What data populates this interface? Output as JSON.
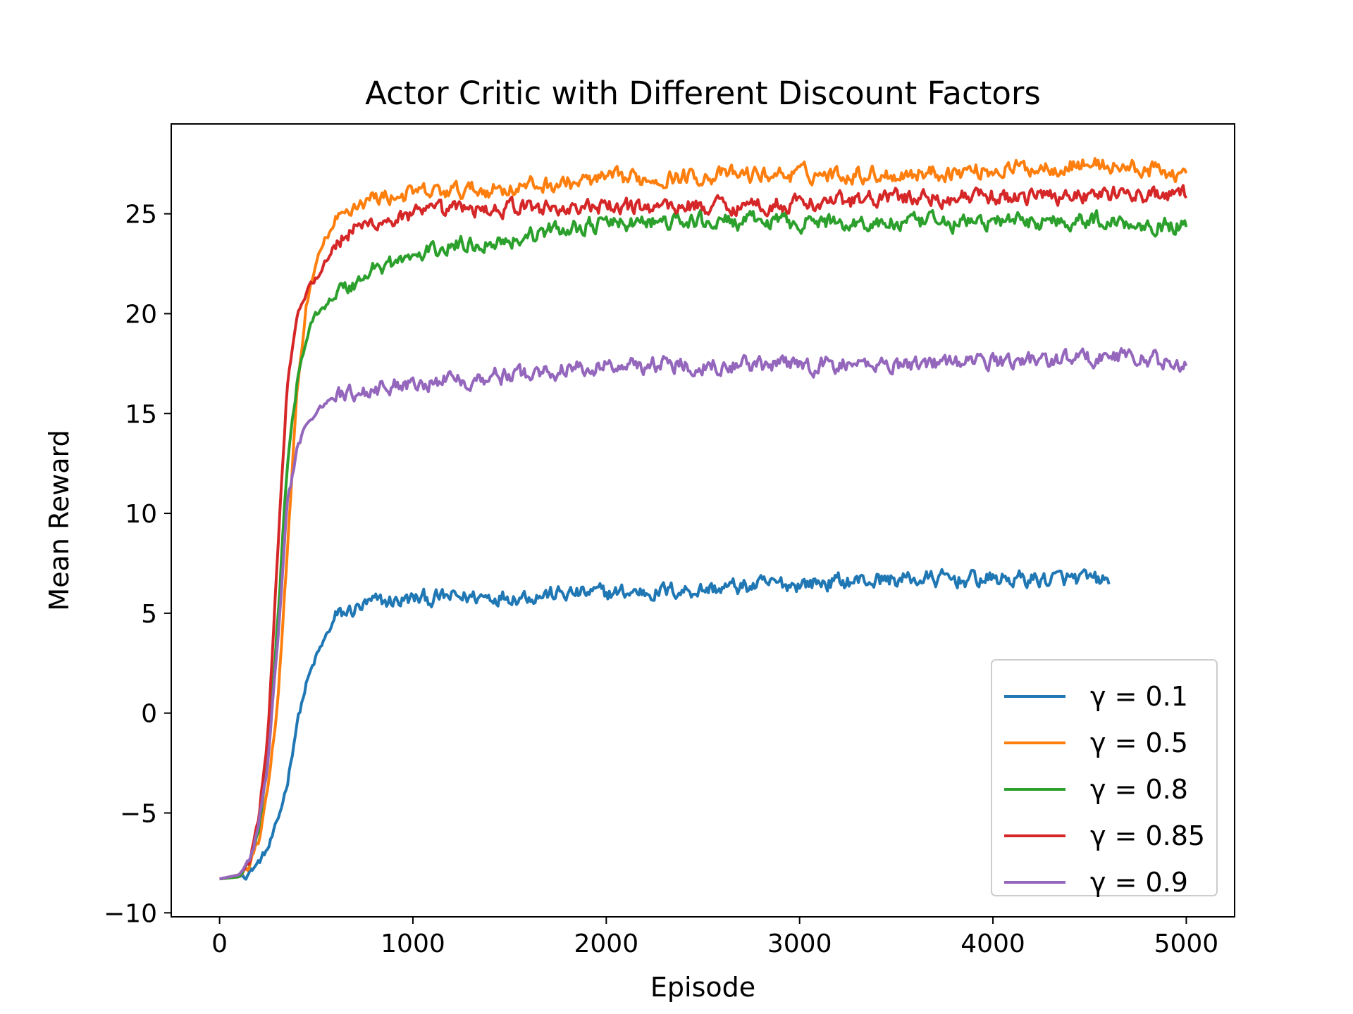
{
  "chart_data": {
    "type": "line",
    "title": "Actor Critic with Different Discount Factors",
    "xlabel": "Episode",
    "ylabel": "Mean Reward",
    "xlim": [
      -250,
      5250
    ],
    "ylim": [
      -10.2,
      29.5
    ],
    "xticks": [
      0,
      1000,
      2000,
      3000,
      4000,
      5000
    ],
    "xtick_labels": [
      "0",
      "1000",
      "2000",
      "3000",
      "4000",
      "5000"
    ],
    "yticks": [
      -10,
      -5,
      0,
      5,
      10,
      15,
      20,
      25
    ],
    "ytick_labels": [
      "−10",
      "−5",
      "0",
      "5",
      "10",
      "15",
      "20",
      "25"
    ],
    "grid": false,
    "legend_position": "lower-right",
    "series": [
      {
        "name": "γ = 0.1",
        "color": "#1f77b4",
        "x": [
          0,
          100,
          150,
          200,
          250,
          300,
          350,
          400,
          450,
          500,
          550,
          600,
          700,
          800,
          1000,
          1500,
          2000,
          2500,
          3000,
          3500,
          4000,
          4400,
          4600
        ],
        "y": [
          -8.3,
          -8.2,
          -8.0,
          -7.5,
          -6.8,
          -5.5,
          -3.5,
          -0.5,
          1.5,
          2.8,
          3.8,
          4.8,
          5.2,
          5.5,
          5.7,
          5.9,
          6.0,
          6.2,
          6.5,
          6.7,
          6.7,
          6.7,
          6.6
        ]
      },
      {
        "name": "γ = 0.5",
        "color": "#ff7f0e",
        "x": [
          0,
          100,
          150,
          200,
          250,
          300,
          350,
          400,
          450,
          500,
          550,
          600,
          700,
          800,
          1000,
          1500,
          2000,
          2500,
          3000,
          3500,
          4000,
          4500,
          5000
        ],
        "y": [
          -8.3,
          -8.2,
          -7.7,
          -6.5,
          -4.0,
          0.5,
          8.0,
          16.0,
          20.5,
          22.5,
          23.8,
          24.5,
          25.5,
          25.8,
          26.0,
          26.3,
          26.7,
          26.9,
          27.0,
          27.0,
          27.2,
          27.5,
          27.0
        ]
      },
      {
        "name": "γ = 0.8",
        "color": "#2ca02c",
        "x": [
          0,
          100,
          150,
          200,
          250,
          300,
          350,
          400,
          450,
          500,
          600,
          700,
          800,
          1000,
          1200,
          1500,
          1800,
          2000,
          2500,
          3000,
          3500,
          4000,
          4500,
          5000
        ],
        "y": [
          -8.3,
          -8.2,
          -7.6,
          -6.0,
          -2.5,
          4.5,
          12.5,
          16.5,
          18.8,
          20.0,
          21.0,
          21.5,
          22.3,
          22.8,
          23.4,
          23.7,
          24.3,
          24.5,
          24.6,
          24.6,
          24.5,
          24.6,
          24.7,
          24.4
        ]
      },
      {
        "name": "γ = 0.85",
        "color": "#d62728",
        "x": [
          0,
          100,
          150,
          200,
          250,
          300,
          350,
          400,
          450,
          500,
          600,
          700,
          800,
          1000,
          1200,
          1500,
          2000,
          2500,
          3000,
          3500,
          4000,
          4500,
          5000
        ],
        "y": [
          -8.3,
          -8.1,
          -7.5,
          -5.5,
          -1.0,
          8.0,
          16.5,
          20.0,
          21.2,
          21.8,
          23.5,
          24.2,
          24.6,
          24.9,
          25.2,
          25.3,
          25.3,
          25.4,
          25.5,
          25.8,
          25.8,
          26.0,
          25.9
        ]
      },
      {
        "name": "γ = 0.9",
        "color": "#9467bd",
        "x": [
          0,
          100,
          150,
          200,
          250,
          300,
          350,
          400,
          450,
          500,
          550,
          600,
          700,
          800,
          1000,
          1200,
          1500,
          2000,
          2500,
          3000,
          3500,
          4000,
          4500,
          4700,
          5000
        ],
        "y": [
          -8.3,
          -8.1,
          -7.5,
          -5.8,
          -2.5,
          3.5,
          10.5,
          13.0,
          14.5,
          15.2,
          15.6,
          15.9,
          16.0,
          16.2,
          16.6,
          16.7,
          16.9,
          17.4,
          17.5,
          17.4,
          17.5,
          17.6,
          17.8,
          17.9,
          17.4
        ]
      }
    ]
  }
}
